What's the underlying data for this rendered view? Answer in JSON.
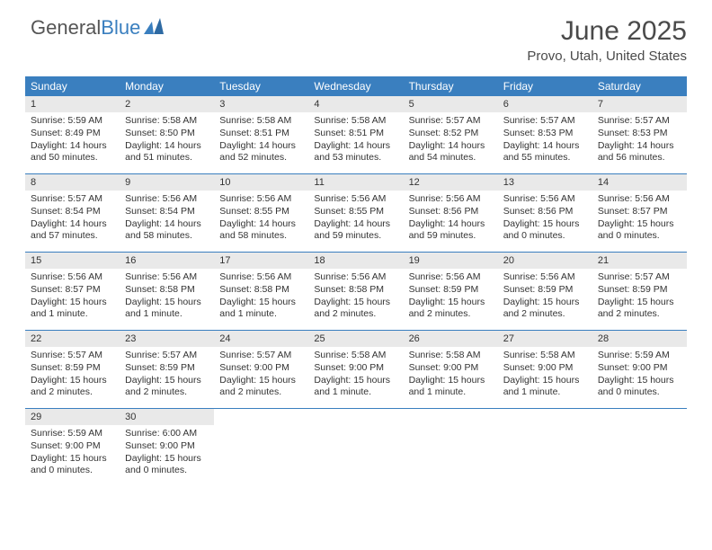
{
  "brand": {
    "part1": "General",
    "part2": "Blue"
  },
  "header": {
    "month_title": "June 2025",
    "location": "Provo, Utah, United States"
  },
  "colors": {
    "header_bg": "#3a7fbf",
    "daynum_bg": "#e9e9e9",
    "week_border": "#3a7fbf",
    "text": "#333333",
    "page_bg": "#ffffff"
  },
  "calendar": {
    "day_headers": [
      "Sunday",
      "Monday",
      "Tuesday",
      "Wednesday",
      "Thursday",
      "Friday",
      "Saturday"
    ],
    "weeks": [
      [
        {
          "n": "1",
          "sr": "5:59 AM",
          "ss": "8:49 PM",
          "dl": "14 hours and 50 minutes."
        },
        {
          "n": "2",
          "sr": "5:58 AM",
          "ss": "8:50 PM",
          "dl": "14 hours and 51 minutes."
        },
        {
          "n": "3",
          "sr": "5:58 AM",
          "ss": "8:51 PM",
          "dl": "14 hours and 52 minutes."
        },
        {
          "n": "4",
          "sr": "5:58 AM",
          "ss": "8:51 PM",
          "dl": "14 hours and 53 minutes."
        },
        {
          "n": "5",
          "sr": "5:57 AM",
          "ss": "8:52 PM",
          "dl": "14 hours and 54 minutes."
        },
        {
          "n": "6",
          "sr": "5:57 AM",
          "ss": "8:53 PM",
          "dl": "14 hours and 55 minutes."
        },
        {
          "n": "7",
          "sr": "5:57 AM",
          "ss": "8:53 PM",
          "dl": "14 hours and 56 minutes."
        }
      ],
      [
        {
          "n": "8",
          "sr": "5:57 AM",
          "ss": "8:54 PM",
          "dl": "14 hours and 57 minutes."
        },
        {
          "n": "9",
          "sr": "5:56 AM",
          "ss": "8:54 PM",
          "dl": "14 hours and 58 minutes."
        },
        {
          "n": "10",
          "sr": "5:56 AM",
          "ss": "8:55 PM",
          "dl": "14 hours and 58 minutes."
        },
        {
          "n": "11",
          "sr": "5:56 AM",
          "ss": "8:55 PM",
          "dl": "14 hours and 59 minutes."
        },
        {
          "n": "12",
          "sr": "5:56 AM",
          "ss": "8:56 PM",
          "dl": "14 hours and 59 minutes."
        },
        {
          "n": "13",
          "sr": "5:56 AM",
          "ss": "8:56 PM",
          "dl": "15 hours and 0 minutes."
        },
        {
          "n": "14",
          "sr": "5:56 AM",
          "ss": "8:57 PM",
          "dl": "15 hours and 0 minutes."
        }
      ],
      [
        {
          "n": "15",
          "sr": "5:56 AM",
          "ss": "8:57 PM",
          "dl": "15 hours and 1 minute."
        },
        {
          "n": "16",
          "sr": "5:56 AM",
          "ss": "8:58 PM",
          "dl": "15 hours and 1 minute."
        },
        {
          "n": "17",
          "sr": "5:56 AM",
          "ss": "8:58 PM",
          "dl": "15 hours and 1 minute."
        },
        {
          "n": "18",
          "sr": "5:56 AM",
          "ss": "8:58 PM",
          "dl": "15 hours and 2 minutes."
        },
        {
          "n": "19",
          "sr": "5:56 AM",
          "ss": "8:59 PM",
          "dl": "15 hours and 2 minutes."
        },
        {
          "n": "20",
          "sr": "5:56 AM",
          "ss": "8:59 PM",
          "dl": "15 hours and 2 minutes."
        },
        {
          "n": "21",
          "sr": "5:57 AM",
          "ss": "8:59 PM",
          "dl": "15 hours and 2 minutes."
        }
      ],
      [
        {
          "n": "22",
          "sr": "5:57 AM",
          "ss": "8:59 PM",
          "dl": "15 hours and 2 minutes."
        },
        {
          "n": "23",
          "sr": "5:57 AM",
          "ss": "8:59 PM",
          "dl": "15 hours and 2 minutes."
        },
        {
          "n": "24",
          "sr": "5:57 AM",
          "ss": "9:00 PM",
          "dl": "15 hours and 2 minutes."
        },
        {
          "n": "25",
          "sr": "5:58 AM",
          "ss": "9:00 PM",
          "dl": "15 hours and 1 minute."
        },
        {
          "n": "26",
          "sr": "5:58 AM",
          "ss": "9:00 PM",
          "dl": "15 hours and 1 minute."
        },
        {
          "n": "27",
          "sr": "5:58 AM",
          "ss": "9:00 PM",
          "dl": "15 hours and 1 minute."
        },
        {
          "n": "28",
          "sr": "5:59 AM",
          "ss": "9:00 PM",
          "dl": "15 hours and 0 minutes."
        }
      ],
      [
        {
          "n": "29",
          "sr": "5:59 AM",
          "ss": "9:00 PM",
          "dl": "15 hours and 0 minutes."
        },
        {
          "n": "30",
          "sr": "6:00 AM",
          "ss": "9:00 PM",
          "dl": "15 hours and 0 minutes."
        },
        null,
        null,
        null,
        null,
        null
      ]
    ],
    "labels": {
      "sunrise_prefix": "Sunrise: ",
      "sunset_prefix": "Sunset: ",
      "daylight_prefix": "Daylight: "
    }
  }
}
